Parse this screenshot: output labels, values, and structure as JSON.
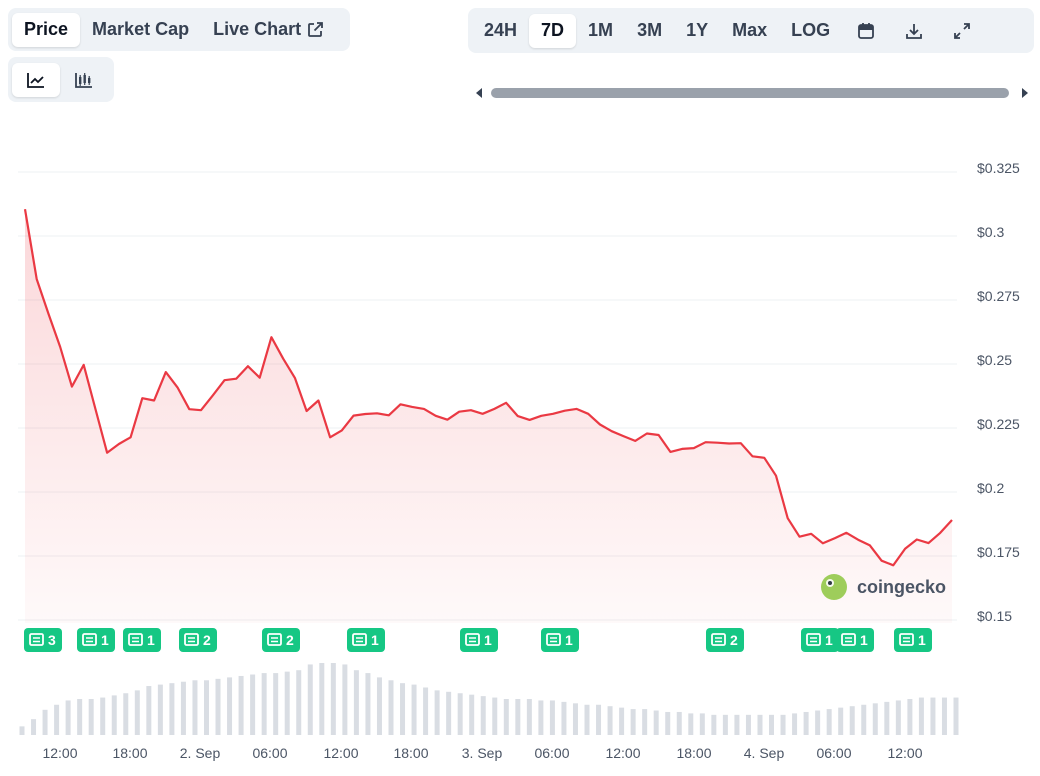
{
  "tabs": {
    "type": [
      {
        "label": "Price",
        "active": true
      },
      {
        "label": "Market Cap",
        "active": false
      },
      {
        "label": "Live Chart",
        "active": false
      }
    ],
    "view_icons": [
      "line-chart-icon",
      "candlestick-chart-icon"
    ],
    "ranges": [
      {
        "label": "24H",
        "active": false
      },
      {
        "label": "7D",
        "active": true
      },
      {
        "label": "1M",
        "active": false
      },
      {
        "label": "3M",
        "active": false
      },
      {
        "label": "1Y",
        "active": false
      },
      {
        "label": "Max",
        "active": false
      },
      {
        "label": "LOG",
        "active": false
      }
    ],
    "tool_icons": [
      "calendar-icon",
      "download-icon",
      "fullscreen-icon"
    ]
  },
  "watermark": "coingecko",
  "colors": {
    "line": "#ea3943",
    "news_badge": "#16c784",
    "volume": "#d9dde3",
    "grid": "#eef0f3"
  },
  "chart_data": {
    "type": "area",
    "y_ticks": [
      "$0.15",
      "$0.175",
      "$0.2",
      "$0.225",
      "$0.25",
      "$0.275",
      "$0.3",
      "$0.325"
    ],
    "y_range": [
      0.15,
      0.325
    ],
    "x_ticks": [
      "12:00",
      "18:00",
      "2. Sep",
      "06:00",
      "12:00",
      "18:00",
      "3. Sep",
      "06:00",
      "12:00",
      "18:00",
      "4. Sep",
      "06:00",
      "12:00"
    ],
    "x_start_hours": -2,
    "x_end_hours": 77.5,
    "price_series": [
      [
        -2.0,
        0.3085
      ],
      [
        -1.0,
        0.2812
      ],
      [
        0.0,
        0.2676
      ],
      [
        1.0,
        0.2547
      ],
      [
        2.0,
        0.2392
      ],
      [
        3.0,
        0.2477
      ],
      [
        4.0,
        0.2305
      ],
      [
        5.0,
        0.2134
      ],
      [
        6.0,
        0.2168
      ],
      [
        7.0,
        0.2194
      ],
      [
        8.0,
        0.2347
      ],
      [
        9.0,
        0.2338
      ],
      [
        10.0,
        0.2449
      ],
      [
        11.0,
        0.2389
      ],
      [
        12.0,
        0.2304
      ],
      [
        13.0,
        0.23
      ],
      [
        14.0,
        0.2357
      ],
      [
        15.0,
        0.2417
      ],
      [
        16.0,
        0.2423
      ],
      [
        17.0,
        0.2472
      ],
      [
        18.0,
        0.2427
      ],
      [
        19.0,
        0.2585
      ],
      [
        20.0,
        0.2501
      ],
      [
        21.0,
        0.2426
      ],
      [
        22.0,
        0.2297
      ],
      [
        23.0,
        0.2338
      ],
      [
        24.0,
        0.2194
      ],
      [
        25.0,
        0.2221
      ],
      [
        26.0,
        0.2279
      ],
      [
        27.0,
        0.2285
      ],
      [
        28.0,
        0.2288
      ],
      [
        29.0,
        0.228
      ],
      [
        30.0,
        0.2323
      ],
      [
        31.0,
        0.2313
      ],
      [
        32.0,
        0.2305
      ],
      [
        33.0,
        0.2278
      ],
      [
        34.0,
        0.2263
      ],
      [
        35.0,
        0.2294
      ],
      [
        36.0,
        0.23
      ],
      [
        37.0,
        0.2286
      ],
      [
        38.0,
        0.2305
      ],
      [
        39.0,
        0.2329
      ],
      [
        40.0,
        0.2277
      ],
      [
        41.0,
        0.2262
      ],
      [
        42.0,
        0.2278
      ],
      [
        43.0,
        0.2286
      ],
      [
        44.0,
        0.2298
      ],
      [
        45.0,
        0.2305
      ],
      [
        46.0,
        0.2286
      ],
      [
        47.0,
        0.2244
      ],
      [
        48.0,
        0.2218
      ],
      [
        49.0,
        0.2199
      ],
      [
        50.0,
        0.218
      ],
      [
        51.0,
        0.2209
      ],
      [
        52.0,
        0.2203
      ],
      [
        53.0,
        0.2137
      ],
      [
        54.0,
        0.2149
      ],
      [
        55.0,
        0.2152
      ],
      [
        56.0,
        0.2175
      ],
      [
        57.0,
        0.2173
      ],
      [
        58.0,
        0.217
      ],
      [
        59.0,
        0.2171
      ],
      [
        60.0,
        0.212
      ],
      [
        61.0,
        0.2114
      ],
      [
        62.0,
        0.2044
      ],
      [
        63.0,
        0.1878
      ],
      [
        64.0,
        0.1806
      ],
      [
        65.0,
        0.1817
      ],
      [
        66.0,
        0.178
      ],
      [
        67.0,
        0.18
      ],
      [
        68.0,
        0.1821
      ],
      [
        69.0,
        0.1794
      ],
      [
        70.0,
        0.1772
      ],
      [
        71.0,
        0.1712
      ],
      [
        72.0,
        0.1694
      ],
      [
        73.0,
        0.1759
      ],
      [
        74.0,
        0.1795
      ],
      [
        75.0,
        0.1781
      ],
      [
        76.0,
        0.1821
      ],
      [
        77.0,
        0.1871
      ]
    ],
    "volume_relative": [
      0.12,
      0.22,
      0.35,
      0.42,
      0.48,
      0.5,
      0.5,
      0.52,
      0.55,
      0.58,
      0.62,
      0.68,
      0.7,
      0.72,
      0.74,
      0.76,
      0.76,
      0.78,
      0.8,
      0.82,
      0.84,
      0.86,
      0.86,
      0.88,
      0.9,
      0.98,
      1.0,
      1.0,
      0.98,
      0.9,
      0.86,
      0.8,
      0.76,
      0.72,
      0.7,
      0.66,
      0.62,
      0.6,
      0.58,
      0.56,
      0.54,
      0.52,
      0.5,
      0.5,
      0.5,
      0.48,
      0.48,
      0.46,
      0.44,
      0.42,
      0.42,
      0.4,
      0.38,
      0.36,
      0.36,
      0.34,
      0.32,
      0.32,
      0.3,
      0.3,
      0.28,
      0.28,
      0.28,
      0.28,
      0.28,
      0.28,
      0.28,
      0.3,
      0.32,
      0.34,
      0.36,
      0.38,
      0.4,
      0.42,
      0.44,
      0.46,
      0.48,
      0.5,
      0.52,
      0.52,
      0.52,
      0.52
    ],
    "news_markers": [
      {
        "x": 24,
        "count": "3"
      },
      {
        "x": 77,
        "count": "1"
      },
      {
        "x": 123,
        "count": "1"
      },
      {
        "x": 179,
        "count": "2"
      },
      {
        "x": 262,
        "count": "2"
      },
      {
        "x": 347,
        "count": "1"
      },
      {
        "x": 460,
        "count": "1"
      },
      {
        "x": 541,
        "count": "1"
      },
      {
        "x": 706,
        "count": "2"
      },
      {
        "x": 801,
        "count": "1"
      },
      {
        "x": 836,
        "count": "1"
      },
      {
        "x": 894,
        "count": "1"
      }
    ]
  }
}
